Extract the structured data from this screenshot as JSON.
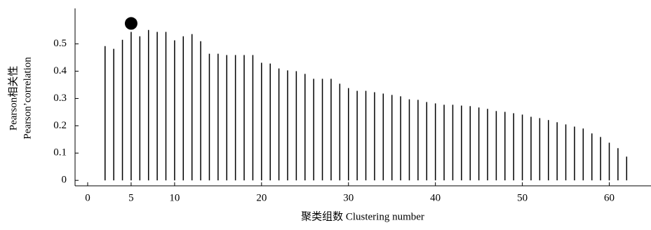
{
  "chart_data": {
    "type": "stem",
    "y_label_lines": [
      "Pearson相关性",
      "Pearson’correlation"
    ],
    "x_label": "聚类组数 Clustering number",
    "x": [
      2,
      3,
      4,
      5,
      6,
      7,
      8,
      9,
      10,
      11,
      12,
      13,
      14,
      15,
      16,
      17,
      18,
      19,
      20,
      21,
      22,
      23,
      24,
      25,
      26,
      27,
      28,
      29,
      30,
      31,
      32,
      33,
      34,
      35,
      36,
      37,
      38,
      39,
      40,
      41,
      42,
      43,
      44,
      45,
      46,
      47,
      48,
      49,
      50,
      51,
      52,
      53,
      54,
      55,
      56,
      57,
      58,
      59,
      60,
      61,
      62
    ],
    "values": [
      0.492,
      0.482,
      0.515,
      0.544,
      0.528,
      0.551,
      0.544,
      0.544,
      0.513,
      0.528,
      0.536,
      0.51,
      0.464,
      0.464,
      0.459,
      0.459,
      0.459,
      0.459,
      0.431,
      0.428,
      0.41,
      0.403,
      0.4,
      0.39,
      0.372,
      0.372,
      0.372,
      0.354,
      0.338,
      0.328,
      0.328,
      0.323,
      0.318,
      0.313,
      0.308,
      0.297,
      0.295,
      0.287,
      0.282,
      0.277,
      0.277,
      0.274,
      0.272,
      0.267,
      0.262,
      0.254,
      0.251,
      0.246,
      0.241,
      0.233,
      0.228,
      0.221,
      0.213,
      0.205,
      0.197,
      0.19,
      0.172,
      0.159,
      0.138,
      0.118,
      0.087
    ],
    "color": "#000000",
    "highlight": {
      "x": 5,
      "y": 0.575
    },
    "xlim": [
      -1.45,
      64.8
    ],
    "ylim": [
      -0.02,
      0.63
    ],
    "xticks": [
      0,
      5,
      10,
      20,
      30,
      40,
      50,
      60
    ],
    "yticks": [
      0,
      0.1,
      0.2,
      0.3,
      0.4,
      0.5
    ]
  }
}
